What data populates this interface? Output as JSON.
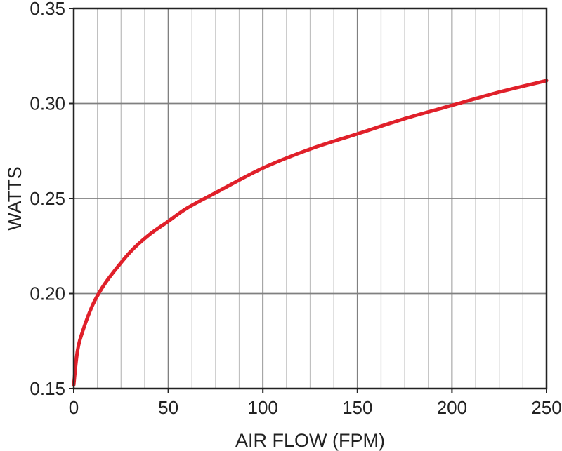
{
  "chart_data": {
    "type": "line",
    "title": "",
    "xlabel": "AIR FLOW (FPM)",
    "ylabel": "WATTS",
    "xlim": [
      0,
      250
    ],
    "ylim": [
      0.15,
      0.35
    ],
    "x_ticks": [
      0,
      50,
      100,
      150,
      200,
      250
    ],
    "x_tick_labels": [
      "0",
      "50",
      "100",
      "150",
      "200",
      "250"
    ],
    "y_ticks": [
      0.15,
      0.2,
      0.25,
      0.3,
      0.35
    ],
    "y_tick_labels": [
      "0.15",
      "0.20",
      "0.25",
      "0.30",
      "0.35"
    ],
    "x_minor_step": 12.5,
    "grid": true,
    "legend": "none",
    "colors": {
      "line": "#e0202a",
      "major_grid": "#808080",
      "minor_grid": "#c0c0c0",
      "frame": "#222222"
    },
    "series": [
      {
        "x": [
          0,
          2,
          5,
          10,
          15,
          20,
          30,
          40,
          50,
          60,
          75,
          100,
          125,
          150,
          175,
          200,
          225,
          250
        ],
        "y": [
          0.152,
          0.17,
          0.181,
          0.194,
          0.203,
          0.21,
          0.222,
          0.231,
          0.238,
          0.245,
          0.253,
          0.266,
          0.276,
          0.284,
          0.292,
          0.299,
          0.306,
          0.312
        ]
      }
    ]
  }
}
